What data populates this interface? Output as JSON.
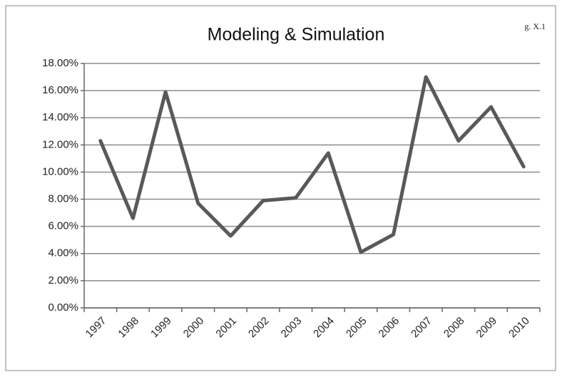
{
  "chart_data": {
    "type": "line",
    "title": "Modeling & Simulation",
    "annotation": "g. X.1",
    "categories": [
      "1997",
      "1998",
      "1999",
      "2000",
      "2001",
      "2002",
      "2003",
      "2004",
      "2005",
      "2006",
      "2007",
      "2008",
      "2009",
      "2010"
    ],
    "values": [
      12.3,
      6.6,
      15.9,
      7.7,
      5.3,
      7.9,
      8.1,
      11.4,
      4.1,
      5.4,
      17.0,
      12.3,
      14.8,
      10.4
    ],
    "color": "#595959",
    "ylim": [
      0,
      18
    ],
    "yticks": [
      {
        "value": 0,
        "label": "0.00%"
      },
      {
        "value": 2,
        "label": "2.00%"
      },
      {
        "value": 4,
        "label": "4.00%"
      },
      {
        "value": 6,
        "label": "6.00%"
      },
      {
        "value": 8,
        "label": "8.00%"
      },
      {
        "value": 10,
        "label": "10.00%"
      },
      {
        "value": 12,
        "label": "12.00%"
      },
      {
        "value": 14,
        "label": "14.00%"
      },
      {
        "value": 16,
        "label": "16.00%"
      },
      {
        "value": 18,
        "label": "18.00%"
      }
    ],
    "grid": true
  }
}
